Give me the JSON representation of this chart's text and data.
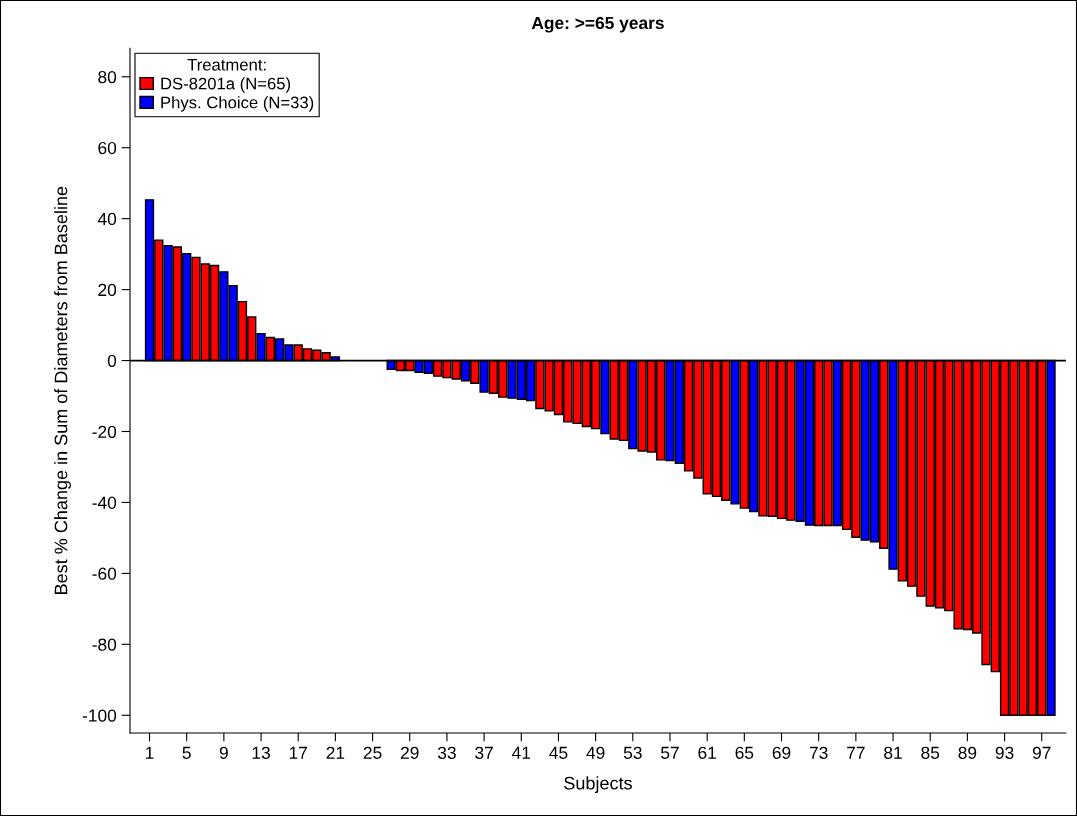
{
  "chart_data": {
    "type": "bar",
    "title": "Age: >=65 years",
    "xlabel": "Subjects",
    "ylabel": "Best % Change in Sum of Diameters from Baseline",
    "legend_title": "Treatment:",
    "legend": "top left",
    "grid": false,
    "x": [
      1,
      2,
      3,
      4,
      5,
      6,
      7,
      8,
      9,
      10,
      11,
      12,
      13,
      14,
      15,
      16,
      17,
      18,
      19,
      20,
      21,
      22,
      23,
      24,
      25,
      26,
      27,
      28,
      29,
      30,
      31,
      32,
      33,
      34,
      35,
      36,
      37,
      38,
      39,
      40,
      41,
      42,
      43,
      44,
      45,
      46,
      47,
      48,
      49,
      50,
      51,
      52,
      53,
      54,
      55,
      56,
      57,
      58,
      59,
      60,
      61,
      62,
      63,
      64,
      65,
      66,
      67,
      68,
      69,
      70,
      71,
      72,
      73,
      74,
      75,
      76,
      77,
      78,
      79,
      80,
      81,
      82,
      83,
      84,
      85,
      86,
      87,
      88,
      89,
      90,
      91,
      92,
      93,
      94,
      95,
      96,
      97,
      98
    ],
    "series": [
      {
        "name": "DS-8201a (N=65)",
        "color": "#ff0000",
        "values": [
          null,
          33.9,
          null,
          32.0,
          null,
          29.1,
          27.2,
          26.8,
          null,
          null,
          16.6,
          12.3,
          null,
          6.5,
          null,
          null,
          4.4,
          3.3,
          2.9,
          2.2,
          null,
          null,
          null,
          null,
          null,
          null,
          null,
          -2.8,
          -2.8,
          null,
          null,
          -4.4,
          -4.8,
          -5.2,
          null,
          -6.4,
          null,
          -9.2,
          -10.3,
          null,
          null,
          null,
          -13.5,
          -14.2,
          -15.2,
          -17.3,
          -17.7,
          -18.6,
          -19.2,
          null,
          -22.1,
          -22.5,
          null,
          -25.5,
          -25.8,
          -28.0,
          null,
          null,
          -31.1,
          -33.1,
          -37.6,
          -38.3,
          -39.4,
          null,
          -41.6,
          null,
          -43.8,
          -43.9,
          -44.5,
          -45.0,
          null,
          null,
          -46.5,
          -46.5,
          null,
          -47.6,
          -49.8,
          null,
          null,
          -52.9,
          null,
          -62.1,
          -63.6,
          -66.4,
          -69.2,
          -69.7,
          -70.5,
          -75.6,
          -75.8,
          -76.8,
          -85.7,
          -87.7,
          -100,
          -100,
          -100,
          -100,
          -100,
          null
        ]
      },
      {
        "name": "Phys. Choice (N=33)",
        "color": "#0000ff",
        "values": [
          45.3,
          null,
          32.4,
          null,
          30.1,
          null,
          null,
          null,
          25.0,
          21.1,
          null,
          null,
          7.6,
          null,
          6.1,
          4.4,
          null,
          null,
          null,
          null,
          1.0,
          null,
          null,
          null,
          null,
          null,
          -2.5,
          null,
          null,
          -3.3,
          -3.6,
          null,
          null,
          null,
          -5.7,
          null,
          -8.9,
          null,
          null,
          -10.6,
          -10.9,
          -11.3,
          null,
          null,
          null,
          null,
          null,
          null,
          null,
          -20.6,
          null,
          null,
          -24.8,
          null,
          null,
          null,
          -28.2,
          -29.0,
          null,
          null,
          null,
          null,
          null,
          -40.4,
          null,
          -42.6,
          null,
          null,
          null,
          null,
          -45.3,
          -46.4,
          null,
          null,
          -46.5,
          null,
          null,
          -50.6,
          -51.1,
          null,
          -58.8,
          null,
          null,
          null,
          null,
          null,
          null,
          null,
          null,
          null,
          null,
          null,
          null,
          null,
          null,
          null,
          null,
          -100
        ]
      }
    ],
    "ylim": [
      -105,
      88
    ],
    "yticks": [
      -100,
      -80,
      -60,
      -40,
      -20,
      0,
      20,
      40,
      60,
      80
    ],
    "xlim": [
      -1.1,
      99.6
    ],
    "xticks": [
      1,
      5,
      9,
      13,
      17,
      21,
      25,
      29,
      33,
      37,
      41,
      45,
      49,
      53,
      57,
      61,
      65,
      69,
      73,
      77,
      81,
      85,
      89,
      93,
      97
    ],
    "ref_lines": [
      {
        "axis": "y",
        "value": 0,
        "color": "#000000"
      }
    ]
  }
}
